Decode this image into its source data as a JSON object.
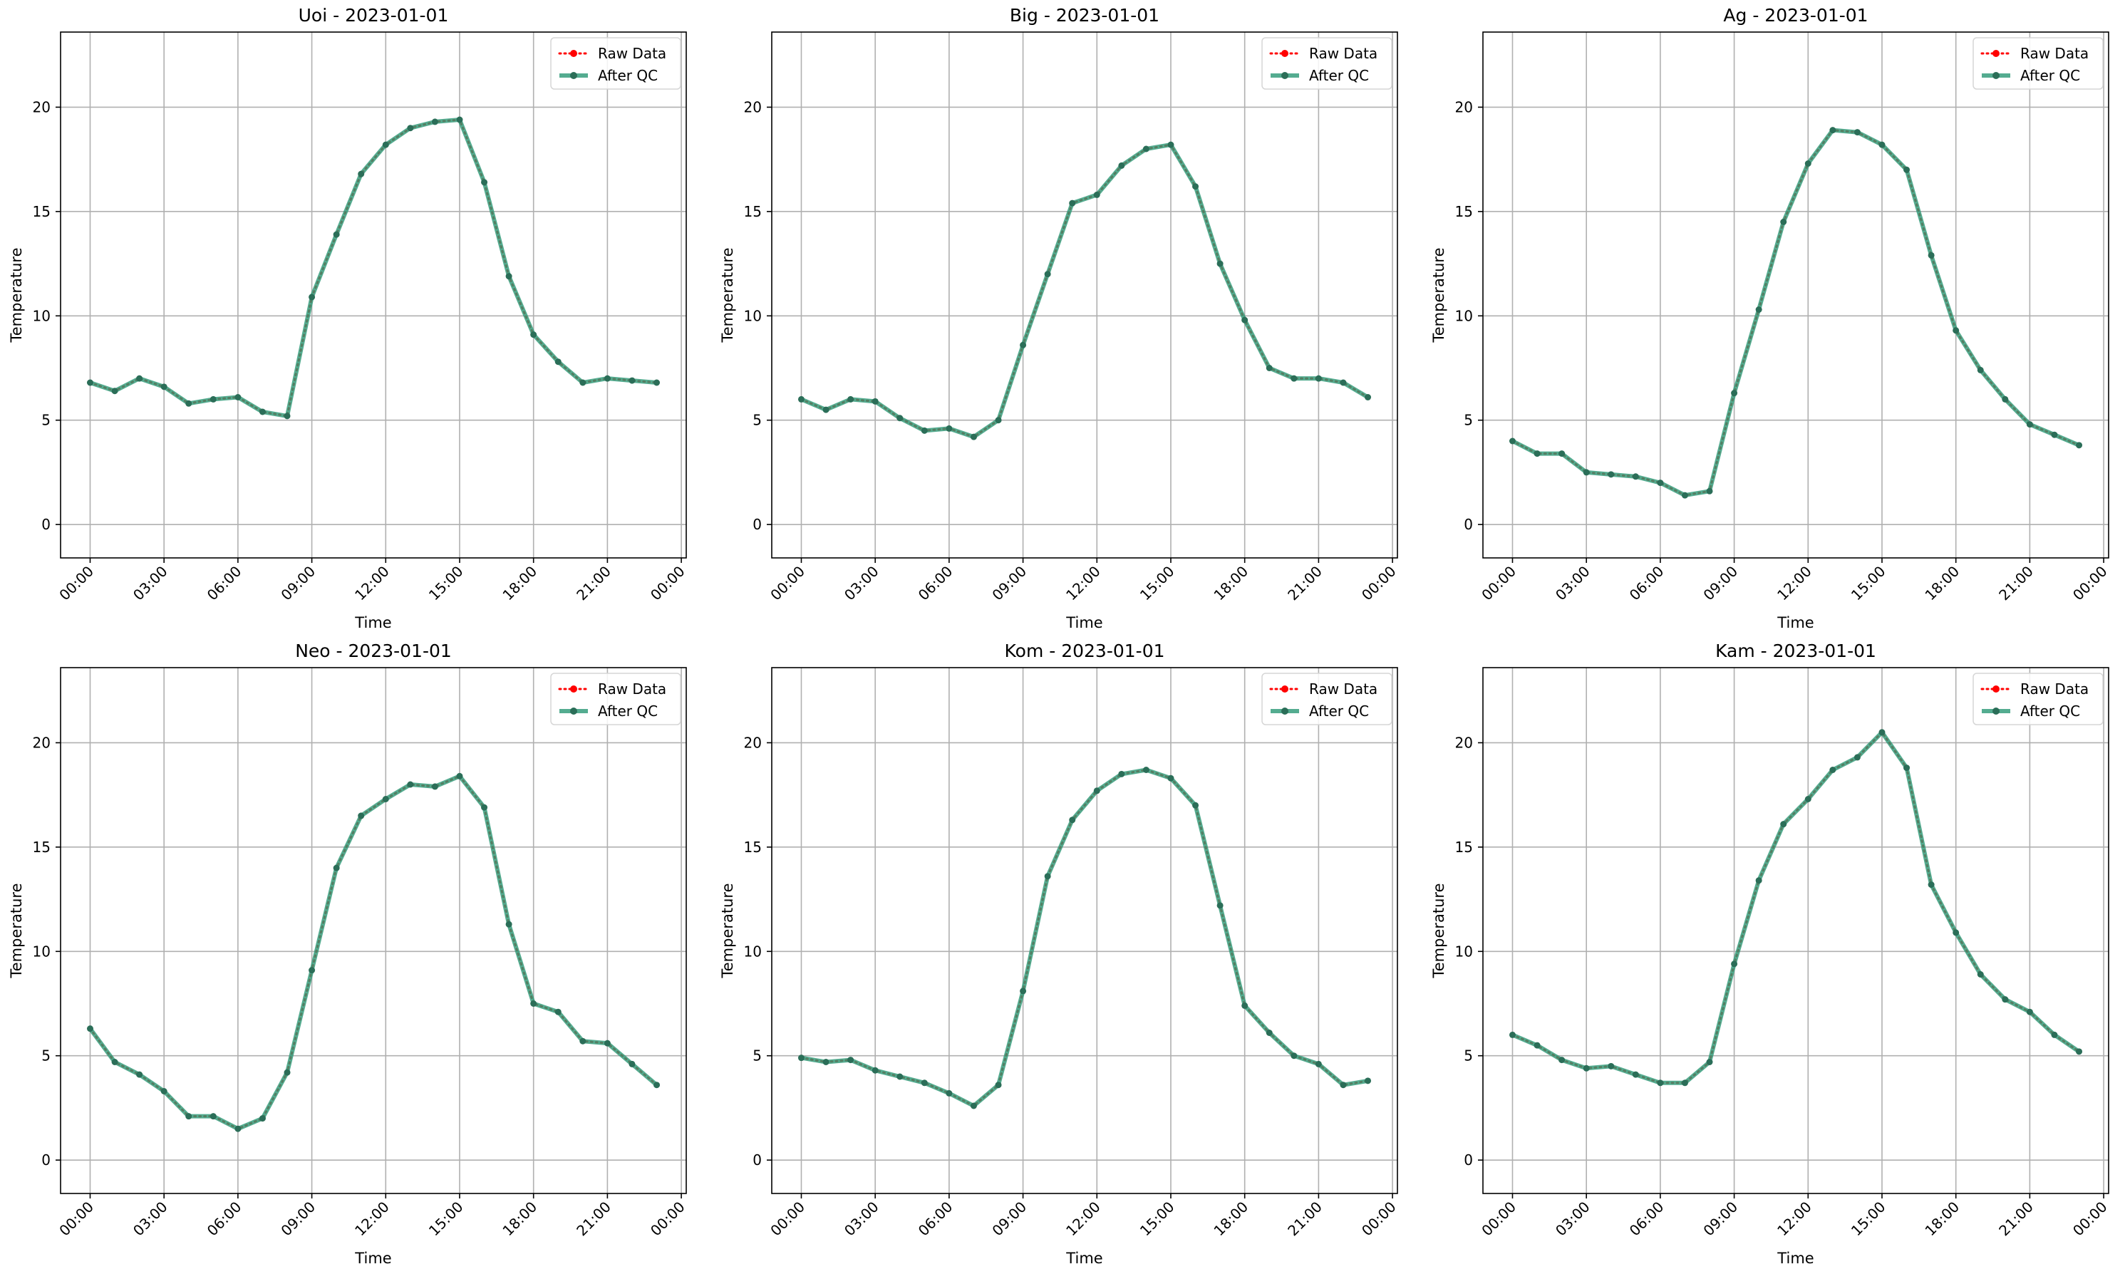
{
  "chart_data": [
    {
      "type": "line",
      "title": "Uoi - 2023-01-01",
      "xlabel": "Time",
      "ylabel": "Temperature",
      "x_unit": "hour",
      "xticks": [
        "00:00",
        "03:00",
        "06:00",
        "09:00",
        "12:00",
        "15:00",
        "18:00",
        "21:00",
        "00:00"
      ],
      "xlim": [
        -1.2,
        24.2
      ],
      "ylim": [
        -1.6,
        23.6
      ],
      "yticks": [
        0,
        5,
        10,
        15,
        20
      ],
      "grid": true,
      "legend_position": "top-right",
      "x": [
        0,
        1,
        2,
        3,
        4,
        5,
        6,
        7,
        8,
        9,
        10,
        11,
        12,
        13,
        14,
        15,
        16,
        17,
        18,
        19,
        20,
        21,
        22,
        23
      ],
      "series": [
        {
          "name": "Raw Data",
          "style": "dotted",
          "color": "#ff0000",
          "values": [
            6.8,
            6.4,
            7.0,
            6.6,
            5.8,
            6.0,
            6.1,
            5.4,
            5.2,
            10.9,
            13.9,
            16.8,
            18.2,
            19.0,
            19.3,
            19.4,
            16.4,
            11.9,
            9.1,
            7.8,
            6.8,
            7.0,
            6.9,
            6.8
          ]
        },
        {
          "name": "After QC",
          "style": "solid",
          "color": "#2e9a78",
          "values": [
            6.8,
            6.4,
            7.0,
            6.6,
            5.8,
            6.0,
            6.1,
            5.4,
            5.2,
            10.9,
            13.9,
            16.8,
            18.2,
            19.0,
            19.3,
            19.4,
            16.4,
            11.9,
            9.1,
            7.8,
            6.8,
            7.0,
            6.9,
            6.8
          ]
        }
      ]
    },
    {
      "type": "line",
      "title": "Big - 2023-01-01",
      "xlabel": "Time",
      "ylabel": "Temperature",
      "x_unit": "hour",
      "xticks": [
        "00:00",
        "03:00",
        "06:00",
        "09:00",
        "12:00",
        "15:00",
        "18:00",
        "21:00",
        "00:00"
      ],
      "xlim": [
        -1.2,
        24.2
      ],
      "ylim": [
        -1.6,
        23.6
      ],
      "yticks": [
        0,
        5,
        10,
        15,
        20
      ],
      "grid": true,
      "legend_position": "top-right",
      "x": [
        0,
        1,
        2,
        3,
        4,
        5,
        6,
        7,
        8,
        9,
        10,
        11,
        12,
        13,
        14,
        15,
        16,
        17,
        18,
        19,
        20,
        21,
        22,
        23
      ],
      "series": [
        {
          "name": "Raw Data",
          "style": "dotted",
          "color": "#ff0000",
          "values": [
            6.0,
            5.5,
            6.0,
            5.9,
            5.1,
            4.5,
            4.6,
            4.2,
            5.0,
            8.6,
            12.0,
            15.4,
            15.8,
            17.2,
            18.0,
            18.2,
            16.2,
            12.5,
            9.8,
            7.5,
            7.0,
            7.0,
            6.8,
            6.1
          ]
        },
        {
          "name": "After QC",
          "style": "solid",
          "color": "#2e9a78",
          "values": [
            6.0,
            5.5,
            6.0,
            5.9,
            5.1,
            4.5,
            4.6,
            4.2,
            5.0,
            8.6,
            12.0,
            15.4,
            15.8,
            17.2,
            18.0,
            18.2,
            16.2,
            12.5,
            9.8,
            7.5,
            7.0,
            7.0,
            6.8,
            6.1
          ]
        }
      ]
    },
    {
      "type": "line",
      "title": "Ag - 2023-01-01",
      "xlabel": "Time",
      "ylabel": "Temperature",
      "x_unit": "hour",
      "xticks": [
        "00:00",
        "03:00",
        "06:00",
        "09:00",
        "12:00",
        "15:00",
        "18:00",
        "21:00",
        "00:00"
      ],
      "xlim": [
        -1.2,
        24.2
      ],
      "ylim": [
        -1.6,
        23.6
      ],
      "yticks": [
        0,
        5,
        10,
        15,
        20
      ],
      "grid": true,
      "legend_position": "top-right",
      "x": [
        0,
        1,
        2,
        3,
        4,
        5,
        6,
        7,
        8,
        9,
        10,
        11,
        12,
        13,
        14,
        15,
        16,
        17,
        18,
        19,
        20,
        21,
        22,
        23
      ],
      "series": [
        {
          "name": "Raw Data",
          "style": "dotted",
          "color": "#ff0000",
          "values": [
            4.0,
            3.4,
            3.4,
            2.5,
            2.4,
            2.3,
            2.0,
            1.4,
            1.6,
            6.3,
            10.3,
            14.5,
            17.3,
            18.9,
            18.8,
            18.2,
            17.0,
            12.9,
            9.3,
            7.4,
            6.0,
            4.8,
            4.3,
            3.8
          ]
        },
        {
          "name": "After QC",
          "style": "solid",
          "color": "#2e9a78",
          "values": [
            4.0,
            3.4,
            3.4,
            2.5,
            2.4,
            2.3,
            2.0,
            1.4,
            1.6,
            6.3,
            10.3,
            14.5,
            17.3,
            18.9,
            18.8,
            18.2,
            17.0,
            12.9,
            9.3,
            7.4,
            6.0,
            4.8,
            4.3,
            3.8
          ]
        }
      ]
    },
    {
      "type": "line",
      "title": "Neo - 2023-01-01",
      "xlabel": "Time",
      "ylabel": "Temperature",
      "x_unit": "hour",
      "xticks": [
        "00:00",
        "03:00",
        "06:00",
        "09:00",
        "12:00",
        "15:00",
        "18:00",
        "21:00",
        "00:00"
      ],
      "xlim": [
        -1.2,
        24.2
      ],
      "ylim": [
        -1.6,
        23.6
      ],
      "yticks": [
        0,
        5,
        10,
        15,
        20
      ],
      "grid": true,
      "legend_position": "top-right",
      "x": [
        0,
        1,
        2,
        3,
        4,
        5,
        6,
        7,
        8,
        9,
        10,
        11,
        12,
        13,
        14,
        15,
        16,
        17,
        18,
        19,
        20,
        21,
        22,
        23
      ],
      "series": [
        {
          "name": "Raw Data",
          "style": "dotted",
          "color": "#ff0000",
          "values": [
            6.3,
            4.7,
            4.1,
            3.3,
            2.1,
            2.1,
            1.5,
            2.0,
            4.2,
            9.1,
            14.0,
            16.5,
            17.3,
            18.0,
            17.9,
            18.4,
            16.9,
            11.3,
            7.5,
            7.1,
            5.7,
            5.6,
            4.6,
            3.6
          ]
        },
        {
          "name": "After QC",
          "style": "solid",
          "color": "#2e9a78",
          "values": [
            6.3,
            4.7,
            4.1,
            3.3,
            2.1,
            2.1,
            1.5,
            2.0,
            4.2,
            9.1,
            14.0,
            16.5,
            17.3,
            18.0,
            17.9,
            18.4,
            16.9,
            11.3,
            7.5,
            7.1,
            5.7,
            5.6,
            4.6,
            3.6
          ]
        }
      ]
    },
    {
      "type": "line",
      "title": "Kom - 2023-01-01",
      "xlabel": "Time",
      "ylabel": "Temperature",
      "x_unit": "hour",
      "xticks": [
        "00:00",
        "03:00",
        "06:00",
        "09:00",
        "12:00",
        "15:00",
        "18:00",
        "21:00",
        "00:00"
      ],
      "xlim": [
        -1.2,
        24.2
      ],
      "ylim": [
        -1.6,
        23.6
      ],
      "yticks": [
        0,
        5,
        10,
        15,
        20
      ],
      "grid": true,
      "legend_position": "top-right",
      "x": [
        0,
        1,
        2,
        3,
        4,
        5,
        6,
        7,
        8,
        9,
        10,
        11,
        12,
        13,
        14,
        15,
        16,
        17,
        18,
        19,
        20,
        21,
        22,
        23
      ],
      "series": [
        {
          "name": "Raw Data",
          "style": "dotted",
          "color": "#ff0000",
          "values": [
            4.9,
            4.7,
            4.8,
            4.3,
            4.0,
            3.7,
            3.2,
            2.6,
            3.6,
            8.1,
            13.6,
            16.3,
            17.7,
            18.5,
            18.7,
            18.3,
            17.0,
            12.2,
            7.4,
            6.1,
            5.0,
            4.6,
            3.6,
            3.8
          ]
        },
        {
          "name": "After QC",
          "style": "solid",
          "color": "#2e9a78",
          "values": [
            4.9,
            4.7,
            4.8,
            4.3,
            4.0,
            3.7,
            3.2,
            2.6,
            3.6,
            8.1,
            13.6,
            16.3,
            17.7,
            18.5,
            18.7,
            18.3,
            17.0,
            12.2,
            7.4,
            6.1,
            5.0,
            4.6,
            3.6,
            3.8
          ]
        }
      ]
    },
    {
      "type": "line",
      "title": "Kam - 2023-01-01",
      "xlabel": "Time",
      "ylabel": "Temperature",
      "x_unit": "hour",
      "xticks": [
        "00:00",
        "03:00",
        "06:00",
        "09:00",
        "12:00",
        "15:00",
        "18:00",
        "21:00",
        "00:00"
      ],
      "xlim": [
        -1.2,
        24.2
      ],
      "ylim": [
        -1.6,
        23.6
      ],
      "yticks": [
        0,
        5,
        10,
        15,
        20
      ],
      "grid": true,
      "legend_position": "top-right",
      "x": [
        0,
        1,
        2,
        3,
        4,
        5,
        6,
        7,
        8,
        9,
        10,
        11,
        12,
        13,
        14,
        15,
        16,
        17,
        18,
        19,
        20,
        21,
        22,
        23
      ],
      "series": [
        {
          "name": "Raw Data",
          "style": "dotted",
          "color": "#ff0000",
          "values": [
            6.0,
            5.5,
            4.8,
            4.4,
            4.5,
            4.1,
            3.7,
            3.7,
            4.7,
            9.4,
            13.4,
            16.1,
            17.3,
            18.7,
            19.3,
            20.5,
            18.8,
            13.2,
            10.9,
            8.9,
            7.7,
            7.1,
            6.0,
            5.2
          ]
        },
        {
          "name": "After QC",
          "style": "solid",
          "color": "#2e9a78",
          "values": [
            6.0,
            5.5,
            4.8,
            4.4,
            4.5,
            4.1,
            3.7,
            3.7,
            4.7,
            9.4,
            13.4,
            16.1,
            17.3,
            18.7,
            19.3,
            20.5,
            18.8,
            13.2,
            10.9,
            8.9,
            7.7,
            7.1,
            6.0,
            5.2
          ]
        }
      ]
    }
  ]
}
